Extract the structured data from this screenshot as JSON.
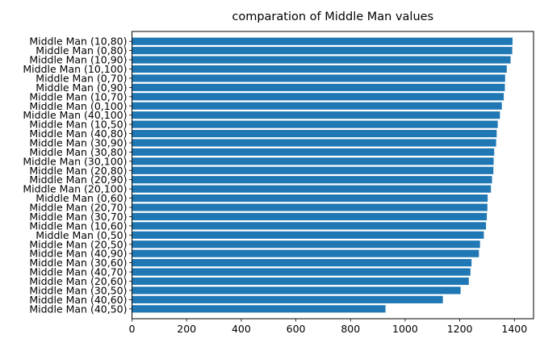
{
  "chart_data": {
    "type": "bar",
    "orientation": "horizontal",
    "title": "comparation of Middle Man values",
    "xlabel": "",
    "ylabel": "",
    "xlim": [
      0,
      1470
    ],
    "x_ticks": [
      0,
      200,
      400,
      600,
      800,
      1000,
      1200,
      1400
    ],
    "grid": false,
    "bar_color": "#1f77b4",
    "categories": [
      "Middle Man (10,80)",
      "Middle Man (0,80)",
      "Middle Man (10,90)",
      "Middle Man (10,100)",
      "Middle Man (0,70)",
      "Middle Man (0,90)",
      "Middle Man (10,70)",
      "Middle Man (0,100)",
      "Middle Man (40,100)",
      "Middle Man (10,50)",
      "Middle Man (40,80)",
      "Middle Man (30,90)",
      "Middle Man (30,80)",
      "Middle Man (30,100)",
      "Middle Man (20,80)",
      "Middle Man (20,90)",
      "Middle Man (20,100)",
      "Middle Man (0,60)",
      "Middle Man (20,70)",
      "Middle Man (30,70)",
      "Middle Man (10,60)",
      "Middle Man (0,50)",
      "Middle Man (20,50)",
      "Middle Man (40,90)",
      "Middle Man (30,60)",
      "Middle Man (40,70)",
      "Middle Man (20,60)",
      "Middle Man (30,50)",
      "Middle Man (40,60)",
      "Middle Man (40,50)"
    ],
    "values": [
      1393,
      1392,
      1386,
      1372,
      1366,
      1365,
      1361,
      1354,
      1347,
      1339,
      1335,
      1333,
      1326,
      1324,
      1323,
      1318,
      1314,
      1302,
      1301,
      1299,
      1296,
      1288,
      1274,
      1270,
      1243,
      1239,
      1233,
      1203,
      1138,
      928
    ]
  }
}
